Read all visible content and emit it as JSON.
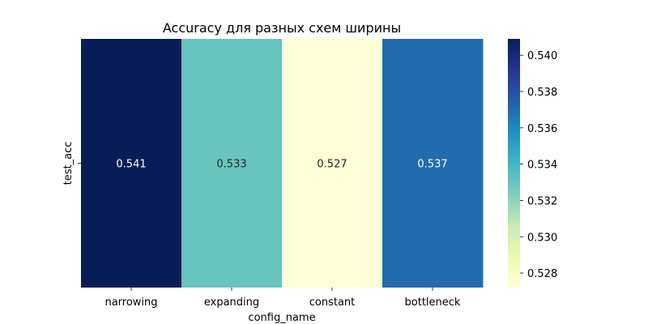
{
  "chart_data": {
    "type": "heatmap",
    "title": "Accuracy для разных схем ширины",
    "xlabel": "config_name",
    "ylabel": "",
    "row_labels": [
      "test_acc"
    ],
    "categories": [
      "narrowing",
      "expanding",
      "constant",
      "bottleneck"
    ],
    "values": [
      [
        0.541,
        0.533,
        0.527,
        0.537
      ]
    ],
    "cell_labels": [
      [
        "0.541",
        "0.533",
        "0.527",
        "0.537"
      ]
    ],
    "colormap": "YlGnBu",
    "colorbar": {
      "min": 0.5272,
      "max": 0.5409,
      "ticks": [
        0.528,
        0.53,
        0.532,
        0.534,
        0.536,
        0.538,
        0.54
      ],
      "tick_labels": [
        "0.528",
        "0.530",
        "0.532",
        "0.534",
        "0.536",
        "0.538",
        "0.540"
      ]
    },
    "grid": false,
    "legend": "colorbar-right"
  }
}
